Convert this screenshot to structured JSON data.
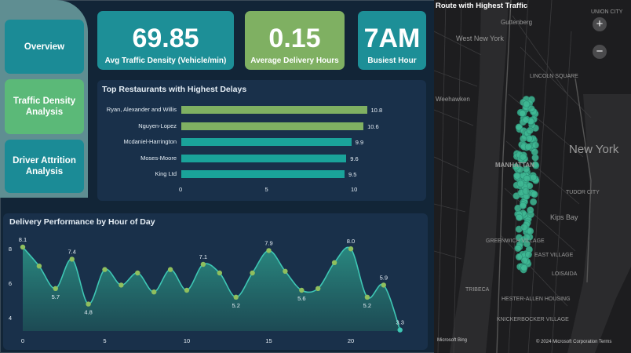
{
  "nav": {
    "overview": "Overview",
    "traffic": "Traffic Density\nAnalysis",
    "driver": "Driver Attrition\nAnalysis"
  },
  "kpis": {
    "density": {
      "value": "69.85",
      "label": "Avg Traffic Density (Vehicle/min)"
    },
    "delivery": {
      "value": "0.15",
      "label": "Average Delivery Hours"
    },
    "busiest": {
      "value": "7AM",
      "label": "Busiest Hour"
    }
  },
  "colors": {
    "teal": "#1d8f97",
    "green": "#7fb062",
    "panel": "#19304a",
    "background": "#122537",
    "bar_green": "#7fb062",
    "bar_teal": "#1aa39a"
  },
  "chart_data": [
    {
      "type": "bar",
      "orientation": "horizontal",
      "title": "Top Restaurants with Highest Delays",
      "categories": [
        "Ryan, Alexander and Willis",
        "Nguyen-Lopez",
        "Mcdaniel-Harrington",
        "Moses-Moore",
        "King Ltd"
      ],
      "values": [
        10.8,
        10.6,
        9.9,
        9.6,
        9.5
      ],
      "value_labels": [
        "10.8",
        "10.6",
        "9.9",
        "9.6",
        "9.5"
      ],
      "xlim": [
        0,
        11
      ],
      "xticks": [
        "0",
        "5",
        "10"
      ]
    },
    {
      "type": "area",
      "title": "Delivery Performance by Hour of Day",
      "x": [
        0,
        1,
        2,
        3,
        4,
        5,
        6,
        7,
        8,
        9,
        10,
        11,
        12,
        13,
        14,
        15,
        16,
        17,
        18,
        19,
        20,
        21,
        22,
        23
      ],
      "values": [
        8.1,
        7.0,
        5.7,
        7.4,
        4.8,
        6.8,
        5.9,
        6.6,
        5.5,
        6.8,
        5.6,
        7.1,
        6.6,
        5.2,
        6.6,
        7.9,
        6.7,
        5.6,
        5.7,
        7.2,
        8.0,
        5.2,
        5.9,
        3.3
      ],
      "labeled": {
        "0": "8.1",
        "3": "7.4",
        "2": "5.7",
        "4": "4.8",
        "11": "7.1",
        "13": "5.2",
        "15": "7.9",
        "17": "5.6",
        "20": "8.0",
        "21": "5.2",
        "22": "5.9",
        "23": "3.3"
      },
      "xticks": [
        "0",
        "5",
        "10",
        "15",
        "20"
      ],
      "yticks": [
        "4",
        "6",
        "8"
      ],
      "ylim": [
        3.3,
        8.7
      ]
    }
  ],
  "map": {
    "title": "Route with Highest Traffic",
    "zoom_in": "+",
    "zoom_out": "−",
    "labels": [
      "UNION CITY",
      "West New York",
      "Guttenberg",
      "Weehawken",
      "New York",
      "MANHATTAN",
      "Kips Bay",
      "TUDOR CITY",
      "GREENWICH VILLAGE",
      "EAST VILLAGE",
      "LOISAIDA",
      "HESTER-ALLEN HOUSING",
      "KNICKERBOCKER VILLAGE",
      "LINCOLN SQUARE",
      "TRIBECA"
    ],
    "attribution": "© 2024 Microsoft Corporation Terms",
    "brand": "Microsoft Bing"
  }
}
